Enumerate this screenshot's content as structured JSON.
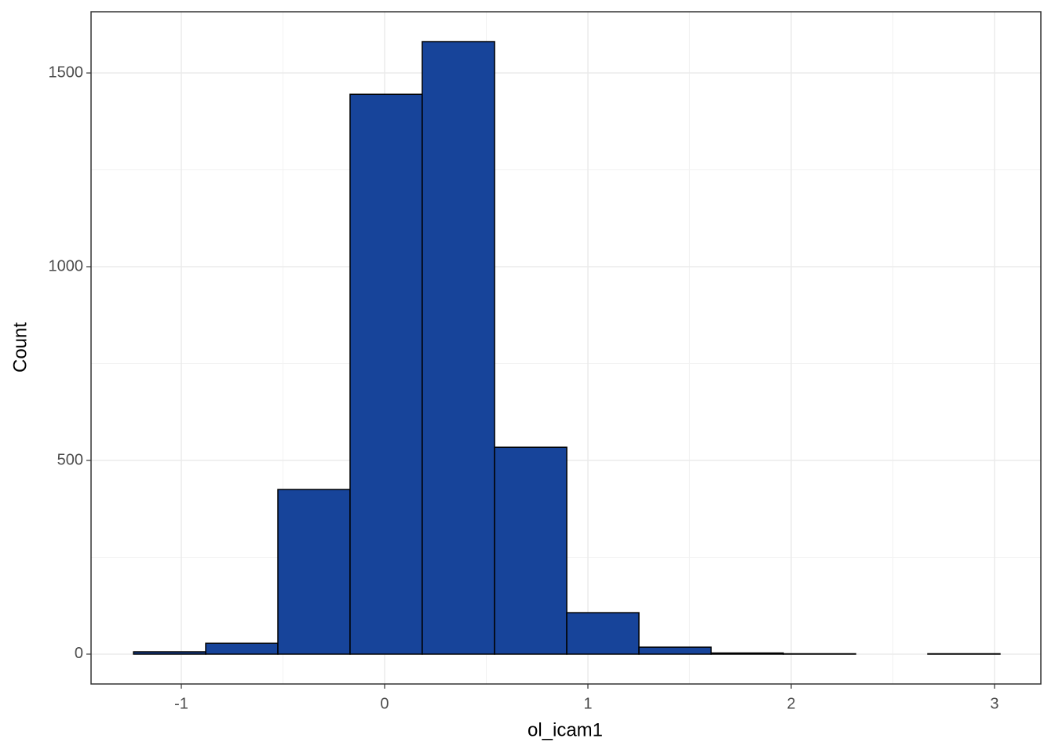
{
  "chart_data": {
    "type": "histogram",
    "x_label": "ol_icam1",
    "y_label": "Count",
    "bins": [
      -1.235,
      -0.88,
      -0.525,
      -0.17,
      0.185,
      0.541,
      0.896,
      1.251,
      1.606,
      1.961,
      2.317,
      2.672,
      3.027
    ],
    "counts": [
      6,
      28,
      425,
      1445,
      1581,
      534,
      107,
      18,
      3,
      1,
      0,
      1
    ],
    "color": "#17449a",
    "edge_color": "#000000",
    "xlim": [
      -1.444,
      3.228
    ],
    "xticks": [
      -1,
      0,
      1,
      2,
      3
    ],
    "ylim": [
      -77,
      1658
    ],
    "yticks": [
      0,
      500,
      1000,
      1500
    ],
    "grid": true
  }
}
